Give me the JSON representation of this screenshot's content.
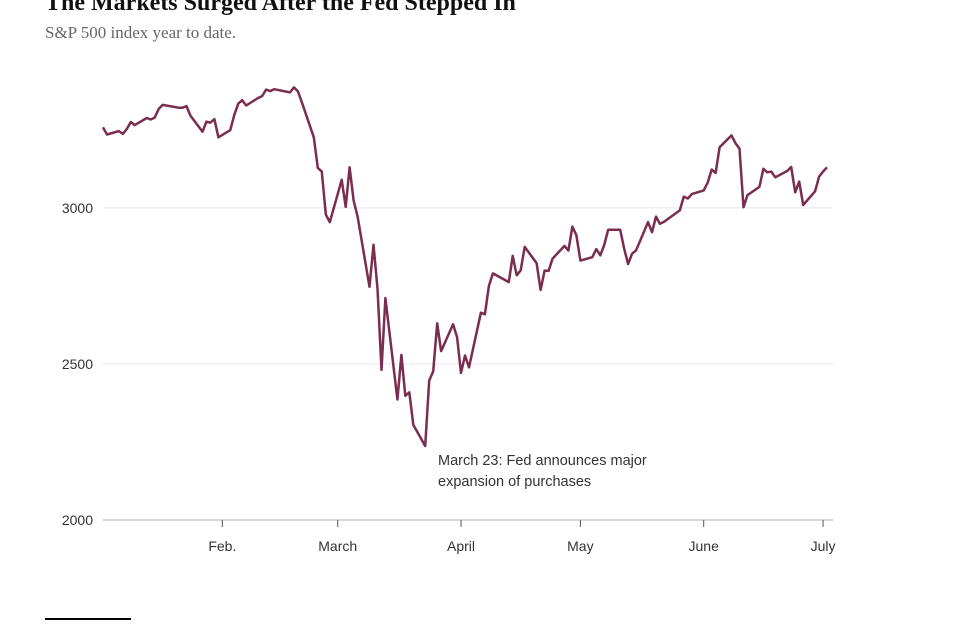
{
  "chart_data": {
    "type": "line",
    "title": "The Markets Surged After the Fed Stepped In",
    "subtitle": "S&P 500 index year to date.",
    "annotation": [
      "March 23: Fed announces major",
      "expansion of purchases"
    ],
    "color": "#7b2d50",
    "grid": true,
    "x": [
      2,
      3,
      6,
      7,
      8,
      9,
      10,
      13,
      14,
      15,
      16,
      17,
      21,
      22,
      23,
      24,
      27,
      28,
      29,
      30,
      31,
      34,
      35,
      36,
      37,
      38,
      41,
      42,
      43,
      44,
      45,
      49,
      50,
      51,
      52,
      55,
      56,
      57,
      58,
      59,
      62,
      63,
      64,
      65,
      66,
      69,
      70,
      71,
      72,
      73,
      76,
      77,
      78,
      79,
      80,
      83,
      84,
      85,
      86,
      87,
      90,
      91,
      92,
      93,
      94,
      97,
      98,
      99,
      100,
      104,
      105,
      106,
      107,
      108,
      111,
      112,
      113,
      114,
      115,
      118,
      119,
      120,
      121,
      122,
      125,
      126,
      127,
      128,
      129,
      132,
      133,
      134,
      135,
      136,
      139,
      140,
      141,
      142,
      143,
      147,
      148,
      149,
      150,
      153,
      154,
      155,
      156,
      157,
      160,
      161,
      162,
      163,
      164,
      167,
      168,
      169,
      170,
      171,
      174,
      175,
      176,
      177,
      178,
      181,
      182,
      183,
      184
    ],
    "values": [
      3258,
      3235,
      3246,
      3237,
      3253,
      3275,
      3265,
      3288,
      3283,
      3289,
      3317,
      3330,
      3321,
      3321,
      3326,
      3295,
      3244,
      3276,
      3273,
      3284,
      3226,
      3249,
      3298,
      3334,
      3345,
      3328,
      3352,
      3358,
      3379,
      3374,
      3380,
      3370,
      3386,
      3373,
      3338,
      3226,
      3128,
      3116,
      2979,
      2954,
      3090,
      3003,
      3130,
      3024,
      2972,
      2747,
      2882,
      2741,
      2481,
      2711,
      2386,
      2529,
      2398,
      2409,
      2305,
      2237,
      2447,
      2476,
      2630,
      2541,
      2627,
      2585,
      2471,
      2527,
      2489,
      2664,
      2659,
      2750,
      2790,
      2762,
      2846,
      2784,
      2800,
      2875,
      2823,
      2737,
      2799,
      2798,
      2837,
      2878,
      2863,
      2940,
      2912,
      2831,
      2842,
      2868,
      2848,
      2881,
      2930,
      2930,
      2870,
      2820,
      2853,
      2864,
      2954,
      2922,
      2972,
      2949,
      2955,
      2992,
      3036,
      3030,
      3044,
      3056,
      3081,
      3123,
      3112,
      3194,
      3232,
      3207,
      3190,
      3002,
      3041,
      3067,
      3125,
      3114,
      3116,
      3098,
      3118,
      3131,
      3050,
      3084,
      3009,
      3053,
      3100,
      3116,
      3130
    ],
    "xlim": [
      2,
      185
    ],
    "xticks": [
      {
        "value": 32,
        "label": "Feb."
      },
      {
        "value": 61,
        "label": "March"
      },
      {
        "value": 92,
        "label": "April"
      },
      {
        "value": 122,
        "label": "May"
      },
      {
        "value": 153,
        "label": "June"
      },
      {
        "value": 183,
        "label": "July"
      }
    ],
    "ylim": [
      2000,
      3400
    ],
    "yticks": [
      2000,
      2500,
      3000
    ]
  }
}
